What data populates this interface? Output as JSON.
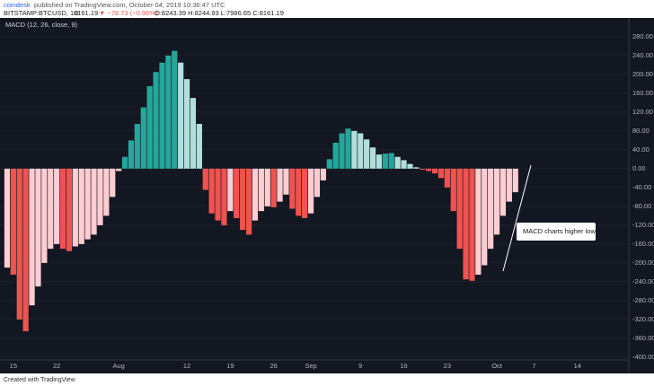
{
  "header": {
    "author": "coindesk",
    "published": "published on TradingView.com, October 04, 2019 10:36:47 UTC",
    "symbol": "BITSTAMP:BTCUSD, 1D",
    "price": "8161.19",
    "change": "▼ −78.73 (−0.96%)",
    "ohlc": "O:8243.39 H:8244.93 L:7986.65 C:8161.19"
  },
  "footer": "Created with TradingView",
  "chart_data": {
    "type": "bar",
    "title": "MACD (12, 26, close, 9)",
    "annotation": "MACD charts higher lows",
    "categories": [
      null,
      "15",
      null,
      null,
      null,
      null,
      null,
      null,
      "22",
      null,
      null,
      null,
      null,
      null,
      null,
      null,
      null,
      null,
      "Aug",
      null,
      null,
      null,
      null,
      null,
      null,
      null,
      null,
      null,
      null,
      "12",
      null,
      null,
      null,
      null,
      null,
      null,
      "19",
      null,
      null,
      null,
      null,
      null,
      null,
      "26",
      null,
      null,
      null,
      null,
      null,
      "Sep",
      null,
      null,
      null,
      null,
      null,
      null,
      null,
      "9",
      null,
      null,
      null,
      null,
      null,
      null,
      "16",
      null,
      null,
      null,
      null,
      null,
      null,
      "23",
      null,
      null,
      null,
      null,
      null,
      null,
      null,
      "Oct",
      null,
      null,
      null,
      null,
      null,
      "7",
      null,
      null,
      null,
      null,
      null,
      null,
      "14",
      null,
      null,
      null,
      null,
      null,
      null,
      null,
      null
    ],
    "values": [
      -210,
      -225,
      -320,
      -345,
      -290,
      -250,
      -200,
      -170,
      -160,
      -170,
      -175,
      -165,
      -160,
      -150,
      -140,
      -120,
      -100,
      -60,
      -5,
      25,
      60,
      95,
      130,
      175,
      205,
      225,
      240,
      250,
      225,
      190,
      150,
      95,
      -45,
      -95,
      -110,
      -120,
      -90,
      -105,
      -130,
      -140,
      -110,
      -90,
      -80,
      -82,
      -70,
      -55,
      -85,
      -100,
      -105,
      -95,
      -60,
      -25,
      20,
      55,
      75,
      85,
      80,
      75,
      62,
      45,
      30,
      32,
      33,
      25,
      18,
      10,
      3,
      -2,
      -5,
      -10,
      -20,
      -40,
      -90,
      -170,
      -235,
      -238,
      -225,
      -205,
      -170,
      -140,
      -100,
      -70,
      -50,
      null,
      null,
      null,
      null,
      null,
      null,
      null,
      null,
      null,
      null,
      null,
      null,
      null,
      null,
      null,
      null,
      null,
      null
    ],
    "colors": [
      "#26a69a",
      "#b2dfdb",
      "#ffcdd2",
      "#ef5350"
    ],
    "ylim": [
      -406,
      316
    ],
    "yticks": [
      {
        "value": 280,
        "label": "280.00"
      },
      {
        "value": 240,
        "label": "240.00"
      },
      {
        "value": 200,
        "label": "200.00"
      },
      {
        "value": 160,
        "label": "160.00"
      },
      {
        "value": 120,
        "label": "120.00"
      },
      {
        "value": 80,
        "label": "80.00"
      },
      {
        "value": 40,
        "label": "40.00"
      },
      {
        "value": 0,
        "label": "0.00"
      },
      {
        "value": -40,
        "label": "-40.00"
      },
      {
        "value": -80,
        "label": "-80.00"
      },
      {
        "value": -120,
        "label": "-120.00"
      },
      {
        "value": -160,
        "label": "-160.00"
      },
      {
        "value": -200,
        "label": "-200.00"
      },
      {
        "value": -240,
        "label": "-240.00"
      },
      {
        "value": -280,
        "label": "-280.00"
      },
      {
        "value": -320,
        "label": "-320.00"
      },
      {
        "value": -360,
        "label": "-360.00"
      },
      {
        "value": -400,
        "label": "-400.00"
      }
    ],
    "grid": true
  }
}
